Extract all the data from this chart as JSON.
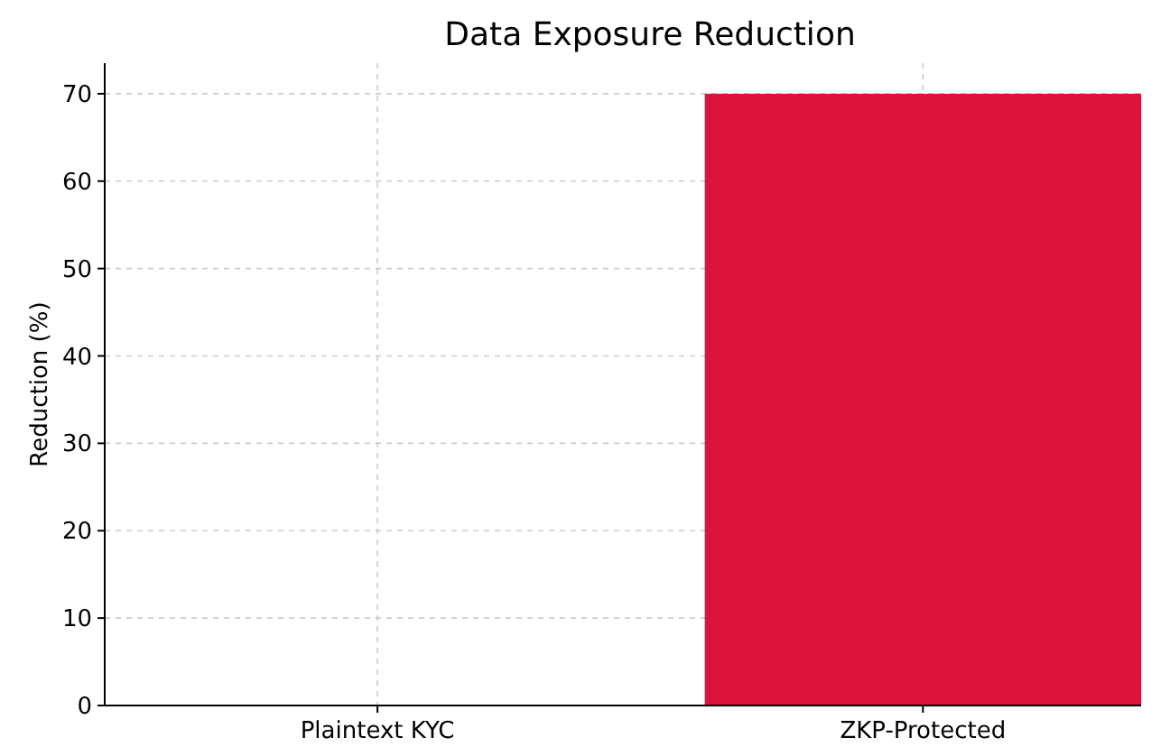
{
  "chart_data": {
    "type": "bar",
    "title": "Data Exposure Reduction",
    "ylabel": "Reduction (%)",
    "categories": [
      "Plaintext KYC",
      "ZKP-Protected"
    ],
    "values": [
      0,
      70
    ],
    "color": "#dc143c",
    "ylim": [
      0,
      73.5
    ],
    "yticks": [
      0,
      10,
      20,
      30,
      40,
      50,
      60,
      70
    ],
    "grid": true
  }
}
